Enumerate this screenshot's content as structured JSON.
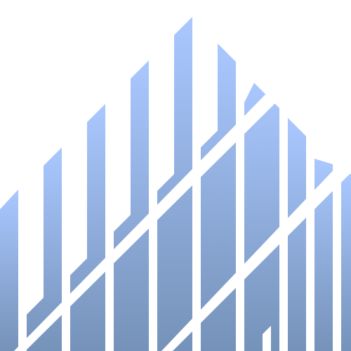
{
  "graphic": {
    "subject": "abstract-skyline-graphic",
    "gradient_top": "#aac8ff",
    "gradient_bottom": "#7592b9",
    "background": "#ffffff"
  }
}
